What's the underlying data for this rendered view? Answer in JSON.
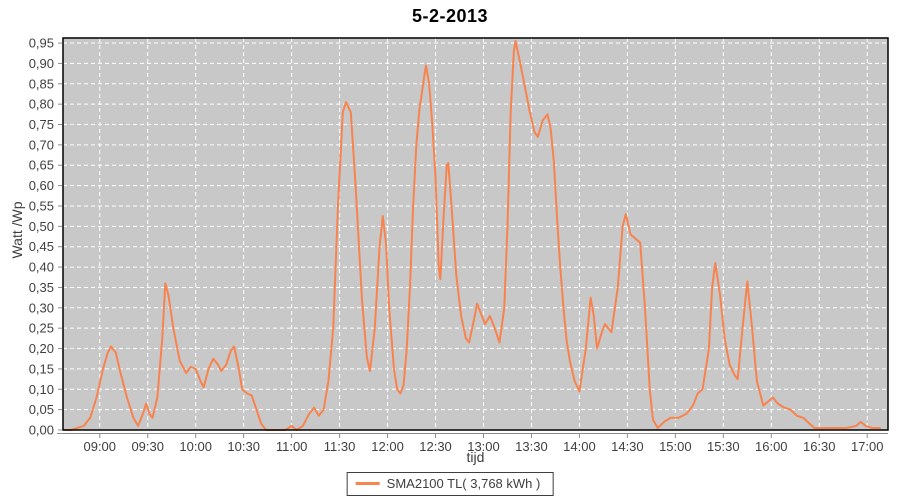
{
  "colors": {
    "series": "#f8834e",
    "plot_background": "#c8c8c8",
    "gridline": "#ffffff",
    "plot_border": "#000000",
    "axis_line": "#8c8c8c",
    "tick_text": "#3f3f3f",
    "title_text": "#000000"
  },
  "chart_data": {
    "type": "line",
    "title": "5-2-2013",
    "xlabel": "tijd",
    "ylabel": "Watt /Wp",
    "legend_position": "bottom-center",
    "grid": "white dashed gridlines on gray plot background",
    "x_domain": [
      "08:37",
      "17:13"
    ],
    "ylim": [
      0,
      0.9624
    ],
    "x_ticks": [
      "09:00",
      "09:30",
      "10:00",
      "10:30",
      "11:00",
      "11:30",
      "12:00",
      "12:30",
      "13:00",
      "13:30",
      "14:00",
      "14:30",
      "15:00",
      "15:30",
      "16:00",
      "16:30",
      "17:00"
    ],
    "y_ticks": [
      {
        "v": 0.0,
        "label": "0,00"
      },
      {
        "v": 0.05,
        "label": "0,05"
      },
      {
        "v": 0.1,
        "label": "0,10"
      },
      {
        "v": 0.15,
        "label": "0,15"
      },
      {
        "v": 0.2,
        "label": "0,20"
      },
      {
        "v": 0.25,
        "label": "0,25"
      },
      {
        "v": 0.3,
        "label": "0,30"
      },
      {
        "v": 0.35,
        "label": "0,35"
      },
      {
        "v": 0.4,
        "label": "0,40"
      },
      {
        "v": 0.45,
        "label": "0,45"
      },
      {
        "v": 0.5,
        "label": "0,50"
      },
      {
        "v": 0.55,
        "label": "0,55"
      },
      {
        "v": 0.6,
        "label": "0,60"
      },
      {
        "v": 0.65,
        "label": "0,65"
      },
      {
        "v": 0.7,
        "label": "0,70"
      },
      {
        "v": 0.75,
        "label": "0,75"
      },
      {
        "v": 0.8,
        "label": "0,80"
      },
      {
        "v": 0.85,
        "label": "0,85"
      },
      {
        "v": 0.9,
        "label": "0,90"
      },
      {
        "v": 0.95,
        "label": "0,95"
      }
    ],
    "series": [
      {
        "name": "SMA2100 TL( 3,768 kWh )",
        "color": "#f8834e",
        "points": [
          [
            "08:38",
            0
          ],
          [
            "08:42",
            0
          ],
          [
            "08:46",
            0.005
          ],
          [
            "08:50",
            0.01
          ],
          [
            "08:54",
            0.03
          ],
          [
            "08:58",
            0.08
          ],
          [
            "09:02",
            0.15
          ],
          [
            "09:05",
            0.19
          ],
          [
            "09:07",
            0.205
          ],
          [
            "09:10",
            0.19
          ],
          [
            "09:13",
            0.14
          ],
          [
            "09:17",
            0.08
          ],
          [
            "09:21",
            0.03
          ],
          [
            "09:24",
            0.01
          ],
          [
            "09:27",
            0.04
          ],
          [
            "09:29",
            0.065
          ],
          [
            "09:31",
            0.04
          ],
          [
            "09:33",
            0.03
          ],
          [
            "09:36",
            0.08
          ],
          [
            "09:39",
            0.22
          ],
          [
            "09:41",
            0.36
          ],
          [
            "09:43",
            0.33
          ],
          [
            "09:46",
            0.25
          ],
          [
            "09:50",
            0.17
          ],
          [
            "09:54",
            0.14
          ],
          [
            "09:57",
            0.155
          ],
          [
            "10:00",
            0.15
          ],
          [
            "10:03",
            0.12
          ],
          [
            "10:05",
            0.105
          ],
          [
            "10:08",
            0.15
          ],
          [
            "10:11",
            0.175
          ],
          [
            "10:14",
            0.16
          ],
          [
            "10:16",
            0.145
          ],
          [
            "10:19",
            0.16
          ],
          [
            "10:22",
            0.195
          ],
          [
            "10:24",
            0.205
          ],
          [
            "10:27",
            0.15
          ],
          [
            "10:29",
            0.1
          ],
          [
            "10:32",
            0.09
          ],
          [
            "10:35",
            0.085
          ],
          [
            "10:38",
            0.05
          ],
          [
            "10:41",
            0.015
          ],
          [
            "10:44",
            0
          ],
          [
            "10:50",
            0
          ],
          [
            "10:56",
            0
          ],
          [
            "11:00",
            0.01
          ],
          [
            "11:03",
            0
          ],
          [
            "11:07",
            0.01
          ],
          [
            "11:11",
            0.04
          ],
          [
            "11:14",
            0.055
          ],
          [
            "11:17",
            0.035
          ],
          [
            "11:20",
            0.05
          ],
          [
            "11:23",
            0.12
          ],
          [
            "11:26",
            0.25
          ],
          [
            "11:29",
            0.55
          ],
          [
            "11:32",
            0.78
          ],
          [
            "11:34",
            0.805
          ],
          [
            "11:37",
            0.78
          ],
          [
            "11:40",
            0.6
          ],
          [
            "11:44",
            0.32
          ],
          [
            "11:47",
            0.18
          ],
          [
            "11:49",
            0.145
          ],
          [
            "11:52",
            0.25
          ],
          [
            "11:55",
            0.45
          ],
          [
            "11:57",
            0.525
          ],
          [
            "11:59",
            0.46
          ],
          [
            "12:01",
            0.3
          ],
          [
            "12:04",
            0.15
          ],
          [
            "12:06",
            0.1
          ],
          [
            "12:08",
            0.09
          ],
          [
            "12:10",
            0.11
          ],
          [
            "12:12",
            0.2
          ],
          [
            "12:14",
            0.35
          ],
          [
            "12:16",
            0.55
          ],
          [
            "12:18",
            0.7
          ],
          [
            "12:20",
            0.79
          ],
          [
            "12:21",
            0.815
          ],
          [
            "12:23",
            0.87
          ],
          [
            "12:24",
            0.895
          ],
          [
            "12:26",
            0.85
          ],
          [
            "12:28",
            0.75
          ],
          [
            "12:30",
            0.62
          ],
          [
            "12:32",
            0.4
          ],
          [
            "12:33",
            0.37
          ],
          [
            "12:35",
            0.52
          ],
          [
            "12:37",
            0.65
          ],
          [
            "12:38",
            0.655
          ],
          [
            "12:40",
            0.55
          ],
          [
            "12:43",
            0.38
          ],
          [
            "12:46",
            0.28
          ],
          [
            "12:49",
            0.225
          ],
          [
            "12:51",
            0.215
          ],
          [
            "12:54",
            0.27
          ],
          [
            "12:56",
            0.31
          ],
          [
            "12:59",
            0.28
          ],
          [
            "13:01",
            0.26
          ],
          [
            "13:04",
            0.28
          ],
          [
            "13:07",
            0.25
          ],
          [
            "13:10",
            0.215
          ],
          [
            "13:13",
            0.3
          ],
          [
            "13:15",
            0.5
          ],
          [
            "13:17",
            0.78
          ],
          [
            "13:19",
            0.93
          ],
          [
            "13:20",
            0.955
          ],
          [
            "13:23",
            0.9
          ],
          [
            "13:26",
            0.84
          ],
          [
            "13:29",
            0.78
          ],
          [
            "13:32",
            0.73
          ],
          [
            "13:34",
            0.72
          ],
          [
            "13:37",
            0.76
          ],
          [
            "13:40",
            0.775
          ],
          [
            "13:42",
            0.74
          ],
          [
            "13:44",
            0.66
          ],
          [
            "13:46",
            0.52
          ],
          [
            "13:48",
            0.4
          ],
          [
            "13:50",
            0.3
          ],
          [
            "13:52",
            0.22
          ],
          [
            "13:54",
            0.17
          ],
          [
            "13:57",
            0.12
          ],
          [
            "14:00",
            0.095
          ],
          [
            "14:04",
            0.2
          ],
          [
            "14:07",
            0.325
          ],
          [
            "14:09",
            0.28
          ],
          [
            "14:11",
            0.2
          ],
          [
            "14:14",
            0.24
          ],
          [
            "14:16",
            0.26
          ],
          [
            "14:18",
            0.25
          ],
          [
            "14:20",
            0.24
          ],
          [
            "14:24",
            0.35
          ],
          [
            "14:27",
            0.5
          ],
          [
            "14:29",
            0.53
          ],
          [
            "14:32",
            0.48
          ],
          [
            "14:35",
            0.47
          ],
          [
            "14:38",
            0.46
          ],
          [
            "14:41",
            0.3
          ],
          [
            "14:44",
            0.1
          ],
          [
            "14:46",
            0.025
          ],
          [
            "14:49",
            0.005
          ],
          [
            "14:53",
            0.02
          ],
          [
            "14:57",
            0.03
          ],
          [
            "15:02",
            0.03
          ],
          [
            "15:07",
            0.04
          ],
          [
            "15:11",
            0.06
          ],
          [
            "15:14",
            0.09
          ],
          [
            "15:17",
            0.1
          ],
          [
            "15:21",
            0.2
          ],
          [
            "15:23",
            0.35
          ],
          [
            "15:25",
            0.41
          ],
          [
            "15:28",
            0.33
          ],
          [
            "15:31",
            0.22
          ],
          [
            "15:34",
            0.16
          ],
          [
            "15:37",
            0.135
          ],
          [
            "15:39",
            0.125
          ],
          [
            "15:42",
            0.25
          ],
          [
            "15:45",
            0.365
          ],
          [
            "15:48",
            0.25
          ],
          [
            "15:51",
            0.12
          ],
          [
            "15:55",
            0.06
          ],
          [
            "15:58",
            0.07
          ],
          [
            "16:01",
            0.08
          ],
          [
            "16:04",
            0.065
          ],
          [
            "16:08",
            0.055
          ],
          [
            "16:12",
            0.05
          ],
          [
            "16:16",
            0.035
          ],
          [
            "16:20",
            0.03
          ],
          [
            "16:24",
            0.015
          ],
          [
            "16:27",
            0.005
          ],
          [
            "16:33",
            0.005
          ],
          [
            "16:40",
            0.005
          ],
          [
            "16:47",
            0.005
          ],
          [
            "16:53",
            0.01
          ],
          [
            "16:56",
            0.02
          ],
          [
            "16:59",
            0.01
          ],
          [
            "17:03",
            0.005
          ],
          [
            "17:08",
            0.005
          ]
        ]
      }
    ]
  }
}
